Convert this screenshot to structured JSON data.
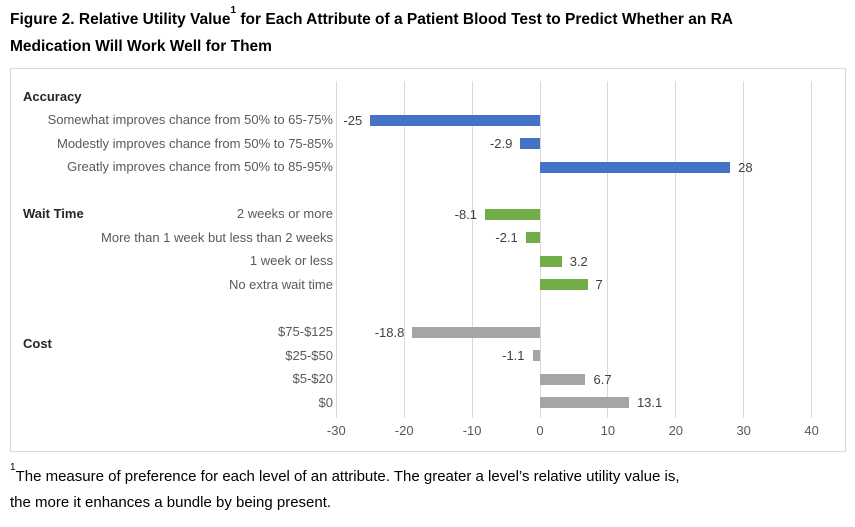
{
  "title": {
    "pre": "Figure 2. Relative Utility Value",
    "sup": "1",
    "line1_rest": " for Each Attribute of a Patient Blood Test to Predict Whether an RA",
    "line2": "Medication Will Work Well for Them"
  },
  "footnote": {
    "sup": "1",
    "line1": "The measure of preference for each level of an attribute. The greater a level’s relative utility value is,",
    "line2": "the more it enhances a bundle by being present."
  },
  "colors": {
    "accuracy_bar": "#4472c4",
    "wait_time_bar": "#70ad47",
    "cost_bar": "#a5a5a5",
    "gridline": "#d9d9d9",
    "chart_border": "#d9d9d9",
    "axis_tick_text": "#595959",
    "category_text": "#595959",
    "value_label_text": "#404040",
    "group_label_text": "#262626"
  },
  "chart_data": {
    "type": "bar",
    "orientation": "horizontal",
    "title": "Relative Utility Value for Each Attribute of a Patient Blood Test",
    "xlabel": "",
    "ylabel": "",
    "xlim": [
      -30,
      45
    ],
    "grid": true,
    "legend_position": "none",
    "axis_ticks": [
      -30,
      -20,
      -10,
      0,
      10,
      20,
      30,
      40
    ],
    "groups": [
      {
        "name": "Accuracy",
        "color": "#4472c4",
        "label_row_offset": -1,
        "items": [
          {
            "label": "Somewhat improves chance from 50% to 65-75%",
            "value": -25,
            "value_label": "-25"
          },
          {
            "label": "Modestly improves chance from 50% to 75-85%",
            "value": -2.9,
            "value_label": "-2.9"
          },
          {
            "label": "Greatly improves chance from 50% to 85-95%",
            "value": 28,
            "value_label": "28"
          }
        ]
      },
      {
        "name": "Wait Time",
        "color": "#70ad47",
        "label_row_offset": 0,
        "items": [
          {
            "label": "2 weeks or more",
            "value": -8.1,
            "value_label": "-8.1"
          },
          {
            "label": "More than 1 week but less than 2 weeks",
            "value": -2.1,
            "value_label": "-2.1"
          },
          {
            "label": "1 week or less",
            "value": 3.2,
            "value_label": "3.2"
          },
          {
            "label": "No extra wait time",
            "value": 7,
            "value_label": "7"
          }
        ]
      },
      {
        "name": "Cost",
        "color": "#a5a5a5",
        "label_row_offset": 0.5,
        "items": [
          {
            "label": "$75-$125",
            "value": -18.8,
            "value_label": "-18.8"
          },
          {
            "label": "$25-$50",
            "value": -1.1,
            "value_label": "-1.1"
          },
          {
            "label": "$5-$20",
            "value": 6.7,
            "value_label": "6.7"
          },
          {
            "label": "$0",
            "value": 13.1,
            "value_label": "13.1"
          }
        ]
      }
    ]
  }
}
